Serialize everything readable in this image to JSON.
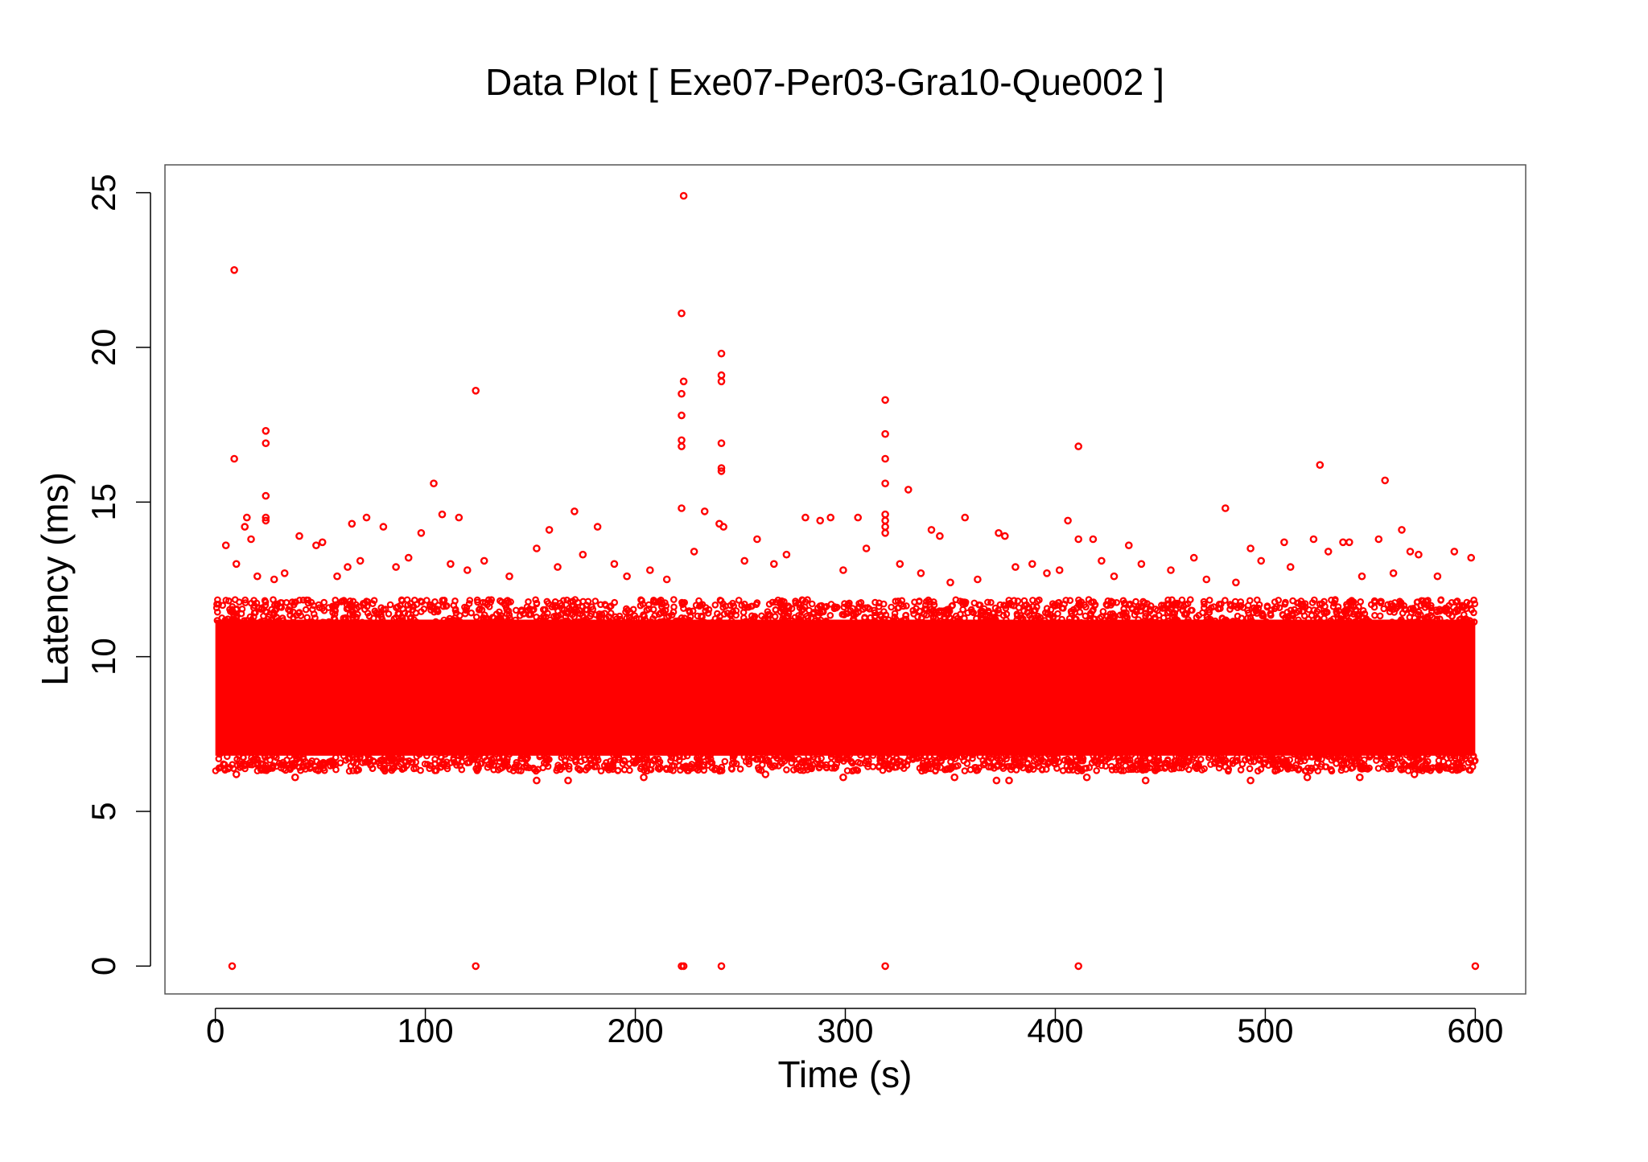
{
  "chart_data": {
    "type": "scatter",
    "title": "Data Plot [ Exe07-Per03-Gra10-Que002 ]",
    "xlabel": "Time (s)",
    "ylabel": "Latency (ms)",
    "xlim": [
      -24,
      624
    ],
    "ylim": [
      -0.9,
      25.9
    ],
    "xticks": [
      0,
      100,
      200,
      300,
      400,
      500,
      600
    ],
    "yticks": [
      0,
      5,
      10,
      15,
      20,
      25
    ],
    "xtick_labels": [
      "0",
      "100",
      "200",
      "300",
      "400",
      "500",
      "600"
    ],
    "ytick_labels": [
      "0",
      "5",
      "10",
      "15",
      "20",
      "25"
    ],
    "grid": false,
    "legend": "none",
    "color": "#ff0000",
    "dense_band": {
      "x_range": [
        0,
        600
      ],
      "y_range": [
        6.3,
        11.8
      ],
      "description_count": 60000
    },
    "series": [
      {
        "points": [
          [
            8,
            0.0
          ],
          [
            124,
            0.0
          ],
          [
            222,
            0.0
          ],
          [
            223,
            0.0
          ],
          [
            241,
            0.0
          ],
          [
            319,
            0.0
          ],
          [
            411,
            0.0
          ],
          [
            600,
            0.0
          ],
          [
            9,
            22.5
          ],
          [
            223,
            24.9
          ],
          [
            222,
            21.1
          ],
          [
            241,
            19.8
          ],
          [
            241,
            19.1
          ],
          [
            241,
            18.9
          ],
          [
            124,
            18.6
          ],
          [
            223,
            18.9
          ],
          [
            222,
            18.5
          ],
          [
            222,
            17.8
          ],
          [
            222,
            17.0
          ],
          [
            222,
            16.8
          ],
          [
            319,
            18.3
          ],
          [
            319,
            17.2
          ],
          [
            319,
            16.4
          ],
          [
            319,
            15.6
          ],
          [
            241,
            16.9
          ],
          [
            241,
            16.1
          ],
          [
            241,
            16.0
          ],
          [
            24,
            17.3
          ],
          [
            24,
            16.9
          ],
          [
            9,
            16.4
          ],
          [
            24,
            15.2
          ],
          [
            24,
            14.5
          ],
          [
            24,
            14.4
          ],
          [
            104,
            15.6
          ],
          [
            411,
            16.8
          ],
          [
            526,
            16.2
          ],
          [
            557,
            15.7
          ],
          [
            330,
            15.4
          ],
          [
            15,
            14.5
          ],
          [
            14,
            14.2
          ],
          [
            17,
            13.8
          ],
          [
            40,
            13.9
          ],
          [
            48,
            13.6
          ],
          [
            51,
            13.7
          ],
          [
            65,
            14.3
          ],
          [
            72,
            14.5
          ],
          [
            80,
            14.2
          ],
          [
            98,
            14.0
          ],
          [
            108,
            14.6
          ],
          [
            116,
            14.5
          ],
          [
            159,
            14.1
          ],
          [
            171,
            14.7
          ],
          [
            182,
            14.2
          ],
          [
            222,
            14.8
          ],
          [
            233,
            14.7
          ],
          [
            240,
            14.3
          ],
          [
            242,
            14.2
          ],
          [
            281,
            14.5
          ],
          [
            288,
            14.4
          ],
          [
            293,
            14.5
          ],
          [
            306,
            14.5
          ],
          [
            319,
            14.6
          ],
          [
            319,
            14.4
          ],
          [
            319,
            14.2
          ],
          [
            319,
            14.0
          ],
          [
            341,
            14.1
          ],
          [
            345,
            13.9
          ],
          [
            357,
            14.5
          ],
          [
            373,
            14.0
          ],
          [
            376,
            13.9
          ],
          [
            406,
            14.4
          ],
          [
            411,
            13.8
          ],
          [
            418,
            13.8
          ],
          [
            435,
            13.6
          ],
          [
            481,
            14.8
          ],
          [
            493,
            13.5
          ],
          [
            509,
            13.7
          ],
          [
            523,
            13.8
          ],
          [
            537,
            13.7
          ],
          [
            540,
            13.7
          ],
          [
            554,
            13.8
          ],
          [
            565,
            14.1
          ],
          [
            573,
            13.3
          ],
          [
            590,
            13.4
          ],
          [
            598,
            13.2
          ],
          [
            5,
            13.6
          ],
          [
            10,
            13.0
          ],
          [
            20,
            12.6
          ],
          [
            28,
            12.5
          ],
          [
            33,
            12.7
          ],
          [
            58,
            12.6
          ],
          [
            63,
            12.9
          ],
          [
            69,
            13.1
          ],
          [
            86,
            12.9
          ],
          [
            92,
            13.2
          ],
          [
            112,
            13.0
          ],
          [
            120,
            12.8
          ],
          [
            128,
            13.1
          ],
          [
            140,
            12.6
          ],
          [
            153,
            13.5
          ],
          [
            163,
            12.9
          ],
          [
            175,
            13.3
          ],
          [
            190,
            13.0
          ],
          [
            196,
            12.6
          ],
          [
            207,
            12.8
          ],
          [
            215,
            12.5
          ],
          [
            228,
            13.4
          ],
          [
            252,
            13.1
          ],
          [
            258,
            13.8
          ],
          [
            266,
            13.0
          ],
          [
            272,
            13.3
          ],
          [
            299,
            12.8
          ],
          [
            310,
            13.5
          ],
          [
            326,
            13.0
          ],
          [
            336,
            12.7
          ],
          [
            350,
            12.4
          ],
          [
            363,
            12.5
          ],
          [
            381,
            12.9
          ],
          [
            389,
            13.0
          ],
          [
            396,
            12.7
          ],
          [
            402,
            12.8
          ],
          [
            422,
            13.1
          ],
          [
            428,
            12.6
          ],
          [
            441,
            13.0
          ],
          [
            455,
            12.8
          ],
          [
            466,
            13.2
          ],
          [
            472,
            12.5
          ],
          [
            486,
            12.4
          ],
          [
            498,
            13.1
          ],
          [
            512,
            12.9
          ],
          [
            530,
            13.4
          ],
          [
            546,
            12.6
          ],
          [
            561,
            12.7
          ],
          [
            569,
            13.4
          ],
          [
            582,
            12.6
          ],
          [
            10,
            6.2
          ],
          [
            38,
            6.1
          ],
          [
            153,
            6.0
          ],
          [
            168,
            6.0
          ],
          [
            204,
            6.1
          ],
          [
            262,
            6.2
          ],
          [
            299,
            6.1
          ],
          [
            352,
            6.1
          ],
          [
            372,
            6.0
          ],
          [
            378,
            6.0
          ],
          [
            415,
            6.1
          ],
          [
            443,
            6.0
          ],
          [
            493,
            6.0
          ],
          [
            520,
            6.1
          ],
          [
            545,
            6.1
          ],
          [
            571,
            6.2
          ]
        ]
      }
    ]
  }
}
